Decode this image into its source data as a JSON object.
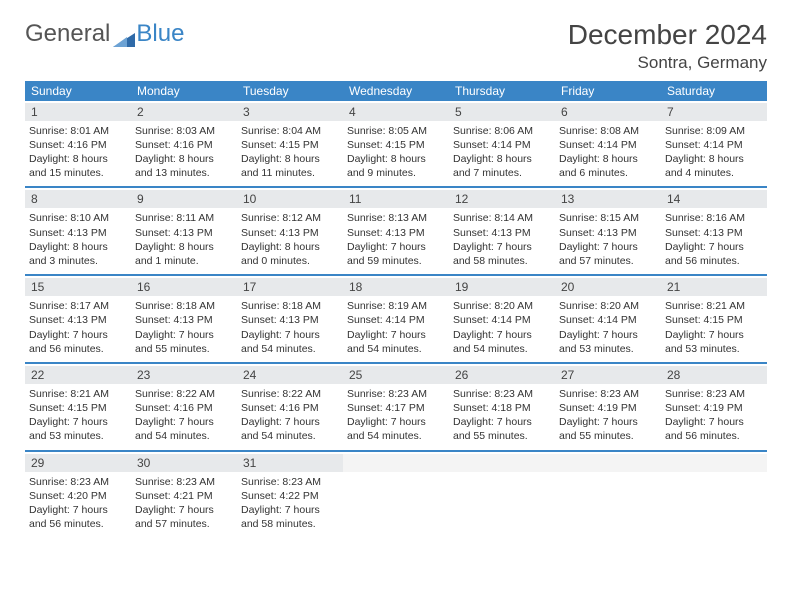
{
  "brand": {
    "part1": "General",
    "part2": "Blue",
    "icon_color": "#2f6aa8"
  },
  "title": "December 2024",
  "location": "Sontra, Germany",
  "colors": {
    "header_bg": "#3a85c6",
    "header_text": "#ffffff",
    "daynum_bg": "#e7e9eb",
    "border": "#3a85c6"
  },
  "weekdays": [
    "Sunday",
    "Monday",
    "Tuesday",
    "Wednesday",
    "Thursday",
    "Friday",
    "Saturday"
  ],
  "weeks": [
    [
      {
        "n": "1",
        "sunrise": "Sunrise: 8:01 AM",
        "sunset": "Sunset: 4:16 PM",
        "dl1": "Daylight: 8 hours",
        "dl2": "and 15 minutes."
      },
      {
        "n": "2",
        "sunrise": "Sunrise: 8:03 AM",
        "sunset": "Sunset: 4:16 PM",
        "dl1": "Daylight: 8 hours",
        "dl2": "and 13 minutes."
      },
      {
        "n": "3",
        "sunrise": "Sunrise: 8:04 AM",
        "sunset": "Sunset: 4:15 PM",
        "dl1": "Daylight: 8 hours",
        "dl2": "and 11 minutes."
      },
      {
        "n": "4",
        "sunrise": "Sunrise: 8:05 AM",
        "sunset": "Sunset: 4:15 PM",
        "dl1": "Daylight: 8 hours",
        "dl2": "and 9 minutes."
      },
      {
        "n": "5",
        "sunrise": "Sunrise: 8:06 AM",
        "sunset": "Sunset: 4:14 PM",
        "dl1": "Daylight: 8 hours",
        "dl2": "and 7 minutes."
      },
      {
        "n": "6",
        "sunrise": "Sunrise: 8:08 AM",
        "sunset": "Sunset: 4:14 PM",
        "dl1": "Daylight: 8 hours",
        "dl2": "and 6 minutes."
      },
      {
        "n": "7",
        "sunrise": "Sunrise: 8:09 AM",
        "sunset": "Sunset: 4:14 PM",
        "dl1": "Daylight: 8 hours",
        "dl2": "and 4 minutes."
      }
    ],
    [
      {
        "n": "8",
        "sunrise": "Sunrise: 8:10 AM",
        "sunset": "Sunset: 4:13 PM",
        "dl1": "Daylight: 8 hours",
        "dl2": "and 3 minutes."
      },
      {
        "n": "9",
        "sunrise": "Sunrise: 8:11 AM",
        "sunset": "Sunset: 4:13 PM",
        "dl1": "Daylight: 8 hours",
        "dl2": "and 1 minute."
      },
      {
        "n": "10",
        "sunrise": "Sunrise: 8:12 AM",
        "sunset": "Sunset: 4:13 PM",
        "dl1": "Daylight: 8 hours",
        "dl2": "and 0 minutes."
      },
      {
        "n": "11",
        "sunrise": "Sunrise: 8:13 AM",
        "sunset": "Sunset: 4:13 PM",
        "dl1": "Daylight: 7 hours",
        "dl2": "and 59 minutes."
      },
      {
        "n": "12",
        "sunrise": "Sunrise: 8:14 AM",
        "sunset": "Sunset: 4:13 PM",
        "dl1": "Daylight: 7 hours",
        "dl2": "and 58 minutes."
      },
      {
        "n": "13",
        "sunrise": "Sunrise: 8:15 AM",
        "sunset": "Sunset: 4:13 PM",
        "dl1": "Daylight: 7 hours",
        "dl2": "and 57 minutes."
      },
      {
        "n": "14",
        "sunrise": "Sunrise: 8:16 AM",
        "sunset": "Sunset: 4:13 PM",
        "dl1": "Daylight: 7 hours",
        "dl2": "and 56 minutes."
      }
    ],
    [
      {
        "n": "15",
        "sunrise": "Sunrise: 8:17 AM",
        "sunset": "Sunset: 4:13 PM",
        "dl1": "Daylight: 7 hours",
        "dl2": "and 56 minutes."
      },
      {
        "n": "16",
        "sunrise": "Sunrise: 8:18 AM",
        "sunset": "Sunset: 4:13 PM",
        "dl1": "Daylight: 7 hours",
        "dl2": "and 55 minutes."
      },
      {
        "n": "17",
        "sunrise": "Sunrise: 8:18 AM",
        "sunset": "Sunset: 4:13 PM",
        "dl1": "Daylight: 7 hours",
        "dl2": "and 54 minutes."
      },
      {
        "n": "18",
        "sunrise": "Sunrise: 8:19 AM",
        "sunset": "Sunset: 4:14 PM",
        "dl1": "Daylight: 7 hours",
        "dl2": "and 54 minutes."
      },
      {
        "n": "19",
        "sunrise": "Sunrise: 8:20 AM",
        "sunset": "Sunset: 4:14 PM",
        "dl1": "Daylight: 7 hours",
        "dl2": "and 54 minutes."
      },
      {
        "n": "20",
        "sunrise": "Sunrise: 8:20 AM",
        "sunset": "Sunset: 4:14 PM",
        "dl1": "Daylight: 7 hours",
        "dl2": "and 53 minutes."
      },
      {
        "n": "21",
        "sunrise": "Sunrise: 8:21 AM",
        "sunset": "Sunset: 4:15 PM",
        "dl1": "Daylight: 7 hours",
        "dl2": "and 53 minutes."
      }
    ],
    [
      {
        "n": "22",
        "sunrise": "Sunrise: 8:21 AM",
        "sunset": "Sunset: 4:15 PM",
        "dl1": "Daylight: 7 hours",
        "dl2": "and 53 minutes."
      },
      {
        "n": "23",
        "sunrise": "Sunrise: 8:22 AM",
        "sunset": "Sunset: 4:16 PM",
        "dl1": "Daylight: 7 hours",
        "dl2": "and 54 minutes."
      },
      {
        "n": "24",
        "sunrise": "Sunrise: 8:22 AM",
        "sunset": "Sunset: 4:16 PM",
        "dl1": "Daylight: 7 hours",
        "dl2": "and 54 minutes."
      },
      {
        "n": "25",
        "sunrise": "Sunrise: 8:23 AM",
        "sunset": "Sunset: 4:17 PM",
        "dl1": "Daylight: 7 hours",
        "dl2": "and 54 minutes."
      },
      {
        "n": "26",
        "sunrise": "Sunrise: 8:23 AM",
        "sunset": "Sunset: 4:18 PM",
        "dl1": "Daylight: 7 hours",
        "dl2": "and 55 minutes."
      },
      {
        "n": "27",
        "sunrise": "Sunrise: 8:23 AM",
        "sunset": "Sunset: 4:19 PM",
        "dl1": "Daylight: 7 hours",
        "dl2": "and 55 minutes."
      },
      {
        "n": "28",
        "sunrise": "Sunrise: 8:23 AM",
        "sunset": "Sunset: 4:19 PM",
        "dl1": "Daylight: 7 hours",
        "dl2": "and 56 minutes."
      }
    ],
    [
      {
        "n": "29",
        "sunrise": "Sunrise: 8:23 AM",
        "sunset": "Sunset: 4:20 PM",
        "dl1": "Daylight: 7 hours",
        "dl2": "and 56 minutes."
      },
      {
        "n": "30",
        "sunrise": "Sunrise: 8:23 AM",
        "sunset": "Sunset: 4:21 PM",
        "dl1": "Daylight: 7 hours",
        "dl2": "and 57 minutes."
      },
      {
        "n": "31",
        "sunrise": "Sunrise: 8:23 AM",
        "sunset": "Sunset: 4:22 PM",
        "dl1": "Daylight: 7 hours",
        "dl2": "and 58 minutes."
      },
      {
        "empty": true
      },
      {
        "empty": true
      },
      {
        "empty": true
      },
      {
        "empty": true
      }
    ]
  ]
}
